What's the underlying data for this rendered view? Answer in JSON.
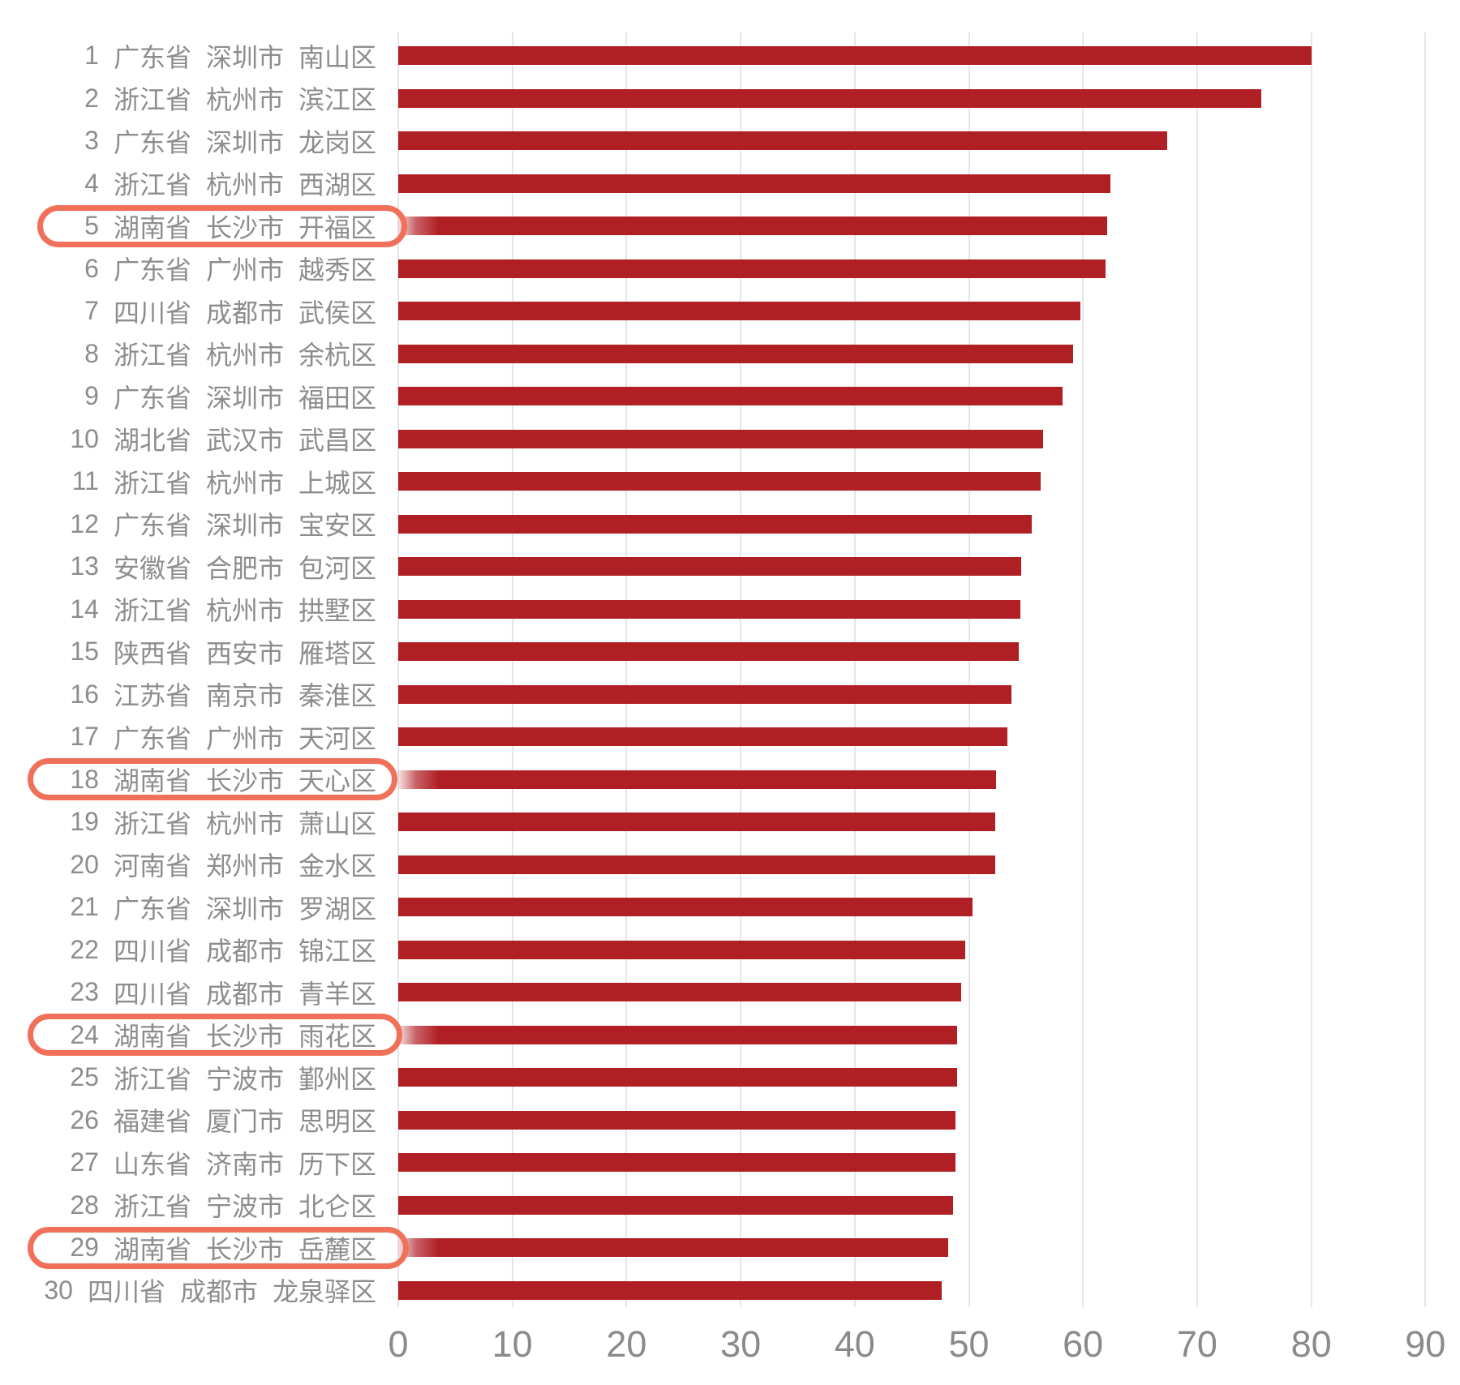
{
  "chart_data": {
    "type": "bar",
    "orientation": "horizontal",
    "title": "",
    "xlabel": "",
    "ylabel": "",
    "xlim": [
      0,
      90
    ],
    "x_ticks": [
      0,
      10,
      20,
      30,
      40,
      50,
      60,
      70,
      80,
      90
    ],
    "grid": true,
    "bar_color": "#B01F24",
    "highlight_circle_color": "#F1705A",
    "label_color": "#8d8d8d",
    "axis_label_color": "#8a8a8a",
    "rows": [
      {
        "rank": "1",
        "province": "广东省",
        "city": "深圳市",
        "district": "南山区",
        "value": 80.0,
        "circled": false
      },
      {
        "rank": "2",
        "province": "浙江省",
        "city": "杭州市",
        "district": "滨江区",
        "value": 75.6,
        "circled": false
      },
      {
        "rank": "3",
        "province": "广东省",
        "city": "深圳市",
        "district": "龙岗区",
        "value": 67.4,
        "circled": false
      },
      {
        "rank": "4",
        "province": "浙江省",
        "city": "杭州市",
        "district": "西湖区",
        "value": 62.4,
        "circled": false
      },
      {
        "rank": "5",
        "province": "湖南省",
        "city": "长沙市",
        "district": "开福区",
        "value": 62.1,
        "circled": true
      },
      {
        "rank": "6",
        "province": "广东省",
        "city": "广州市",
        "district": "越秀区",
        "value": 62.0,
        "circled": false
      },
      {
        "rank": "7",
        "province": "四川省",
        "city": "成都市",
        "district": "武侯区",
        "value": 59.8,
        "circled": false
      },
      {
        "rank": "8",
        "province": "浙江省",
        "city": "杭州市",
        "district": "余杭区",
        "value": 59.1,
        "circled": false
      },
      {
        "rank": "9",
        "province": "广东省",
        "city": "深圳市",
        "district": "福田区",
        "value": 58.2,
        "circled": false
      },
      {
        "rank": "10",
        "province": "湖北省",
        "city": "武汉市",
        "district": "武昌区",
        "value": 56.5,
        "circled": false
      },
      {
        "rank": "11",
        "province": "浙江省",
        "city": "杭州市",
        "district": "上城区",
        "value": 56.3,
        "circled": false
      },
      {
        "rank": "12",
        "province": "广东省",
        "city": "深圳市",
        "district": "宝安区",
        "value": 55.5,
        "circled": false
      },
      {
        "rank": "13",
        "province": "安徽省",
        "city": "合肥市",
        "district": "包河区",
        "value": 54.6,
        "circled": false
      },
      {
        "rank": "14",
        "province": "浙江省",
        "city": "杭州市",
        "district": "拱墅区",
        "value": 54.5,
        "circled": false
      },
      {
        "rank": "15",
        "province": "陕西省",
        "city": "西安市",
        "district": "雁塔区",
        "value": 54.4,
        "circled": false
      },
      {
        "rank": "16",
        "province": "江苏省",
        "city": "南京市",
        "district": "秦淮区",
        "value": 53.7,
        "circled": false
      },
      {
        "rank": "17",
        "province": "广东省",
        "city": "广州市",
        "district": "天河区",
        "value": 53.4,
        "circled": false
      },
      {
        "rank": "18",
        "province": "湖南省",
        "city": "长沙市",
        "district": "天心区",
        "value": 52.4,
        "circled": true
      },
      {
        "rank": "19",
        "province": "浙江省",
        "city": "杭州市",
        "district": "萧山区",
        "value": 52.3,
        "circled": false
      },
      {
        "rank": "20",
        "province": "河南省",
        "city": "郑州市",
        "district": "金水区",
        "value": 52.3,
        "circled": false
      },
      {
        "rank": "21",
        "province": "广东省",
        "city": "深圳市",
        "district": "罗湖区",
        "value": 50.3,
        "circled": false
      },
      {
        "rank": "22",
        "province": "四川省",
        "city": "成都市",
        "district": "锦江区",
        "value": 49.7,
        "circled": false
      },
      {
        "rank": "23",
        "province": "四川省",
        "city": "成都市",
        "district": "青羊区",
        "value": 49.3,
        "circled": false
      },
      {
        "rank": "24",
        "province": "湖南省",
        "city": "长沙市",
        "district": "雨花区",
        "value": 49.0,
        "circled": true
      },
      {
        "rank": "25",
        "province": "浙江省",
        "city": "宁波市",
        "district": "鄞州区",
        "value": 49.0,
        "circled": false
      },
      {
        "rank": "26",
        "province": "福建省",
        "city": "厦门市",
        "district": "思明区",
        "value": 48.8,
        "circled": false
      },
      {
        "rank": "27",
        "province": "山东省",
        "city": "济南市",
        "district": "历下区",
        "value": 48.8,
        "circled": false
      },
      {
        "rank": "28",
        "province": "浙江省",
        "city": "宁波市",
        "district": "北仑区",
        "value": 48.6,
        "circled": false
      },
      {
        "rank": "29",
        "province": "湖南省",
        "city": "长沙市",
        "district": "岳麓区",
        "value": 48.2,
        "circled": true
      },
      {
        "rank": "30",
        "province": "四川省",
        "city": "成都市",
        "district": "龙泉驿区",
        "value": 47.6,
        "circled": false
      }
    ]
  }
}
